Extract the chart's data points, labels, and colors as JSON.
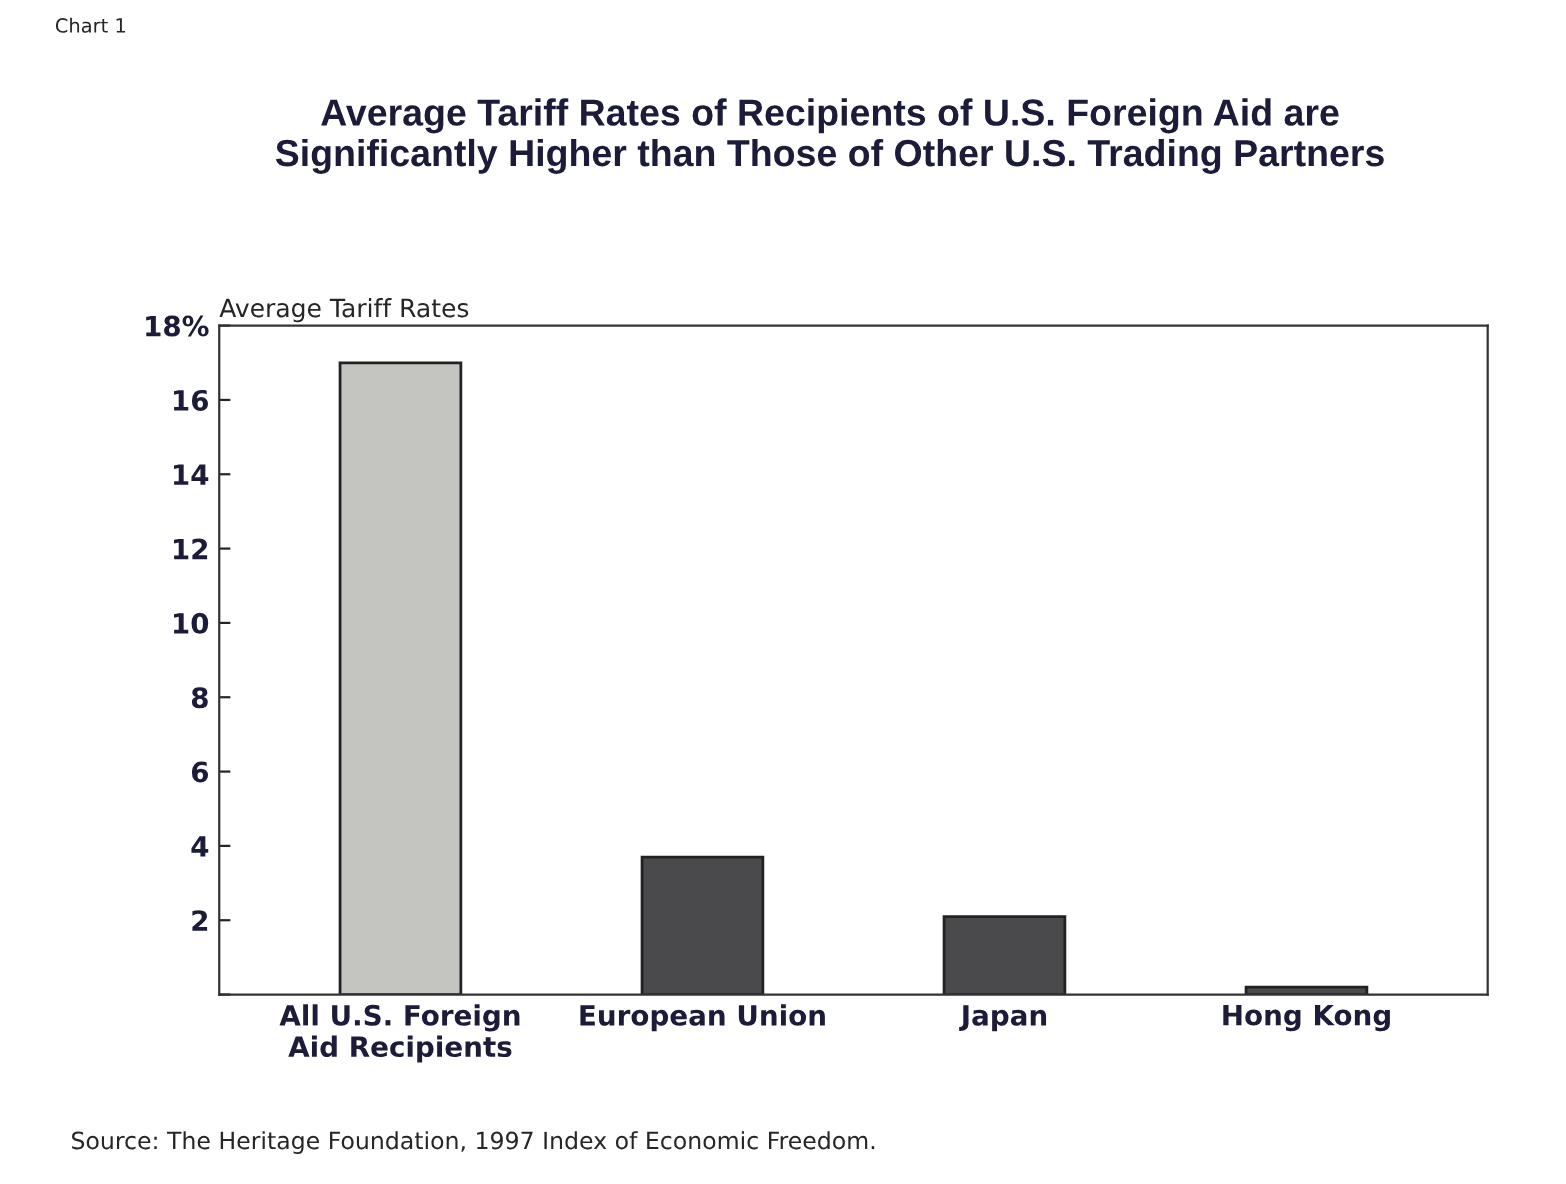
{
  "chart_data": {
    "type": "bar",
    "title": "Average Tariff Rates of Recipients of U.S. Foreign Aid are\nSignificantly Higher than Those of Other U.S. Trading Partners",
    "ylabel": "Average Tariff Rates",
    "categories": [
      "All U.S. Foreign\nAid Recipients",
      "European Union",
      "Japan",
      "Hong Kong"
    ],
    "values": [
      17,
      3.7,
      2.1,
      0.2
    ],
    "colors": [
      "#c4c4c0",
      "#4a4a4c",
      "#4a4a4c",
      "#4a4a4c"
    ],
    "ylim": [
      0,
      18
    ],
    "yticks": [
      {
        "value": 0,
        "label": null
      },
      2,
      4,
      6,
      8,
      10,
      12,
      14,
      16,
      {
        "value": 18,
        "label": "18%"
      }
    ],
    "grid": false,
    "annotations": [
      "Chart 1",
      "Source: The Heritage Foundation, 1997 Index of Economic Freedom."
    ]
  }
}
